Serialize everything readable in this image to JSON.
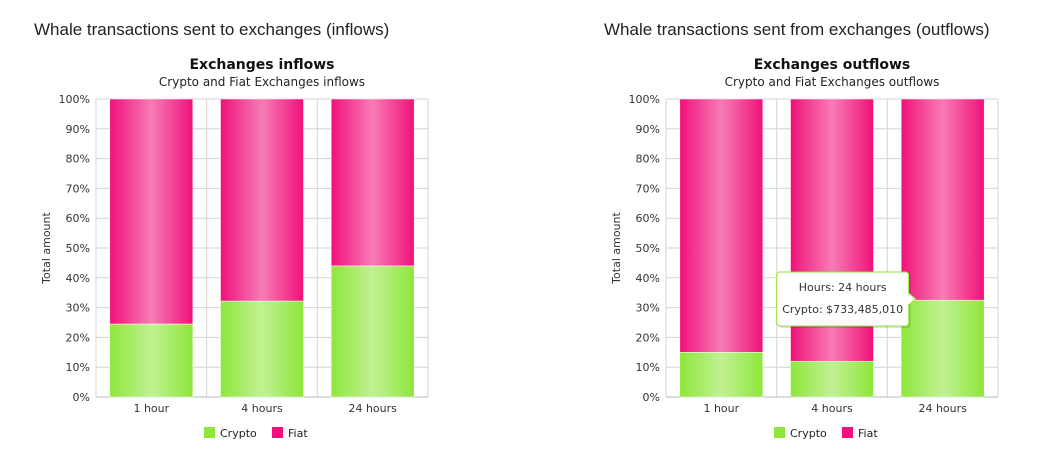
{
  "panels": [
    {
      "heading": "Whale transactions sent to exchanges (inflows)",
      "chart_data": {
        "type": "bar",
        "stacked": true,
        "percent": true,
        "title": "Exchanges inflows",
        "subtitle": "Crypto and Fiat Exchanges inflows",
        "xlabel": "",
        "ylabel": "Total amount",
        "categories": [
          "1 hour",
          "4 hours",
          "24 hours"
        ],
        "yticks": [
          "0%",
          "10%",
          "20%",
          "30%",
          "40%",
          "50%",
          "60%",
          "70%",
          "80%",
          "90%",
          "100%"
        ],
        "ylim": [
          0,
          100
        ],
        "series": [
          {
            "name": "Crypto",
            "values": [
              24.5,
              32.2,
              44.0
            ],
            "color": "#8ee63a"
          },
          {
            "name": "Fiat",
            "values": [
              75.5,
              67.8,
              56.0
            ],
            "color": "#f0117a"
          }
        ],
        "legend_position": "bottom-center",
        "grid": true
      }
    },
    {
      "heading": "Whale transactions sent from exchanges (outflows)",
      "chart_data": {
        "type": "bar",
        "stacked": true,
        "percent": true,
        "title": "Exchanges outflows",
        "subtitle": "Crypto and Fiat Exchanges outflows",
        "xlabel": "",
        "ylabel": "Total amount",
        "categories": [
          "1 hour",
          "4 hours",
          "24 hours"
        ],
        "yticks": [
          "0%",
          "10%",
          "20%",
          "30%",
          "40%",
          "50%",
          "60%",
          "70%",
          "80%",
          "90%",
          "100%"
        ],
        "ylim": [
          0,
          100
        ],
        "series": [
          {
            "name": "Crypto",
            "values": [
              15.0,
              12.0,
              32.5
            ],
            "color": "#8ee63a"
          },
          {
            "name": "Fiat",
            "values": [
              85.0,
              88.0,
              67.5
            ],
            "color": "#f0117a"
          }
        ],
        "legend_position": "bottom-center",
        "grid": true,
        "tooltip": {
          "line1": "Hours: 24 hours",
          "line2": "Crypto: $733,485,010",
          "border_color": "#8ee63a"
        }
      }
    }
  ]
}
